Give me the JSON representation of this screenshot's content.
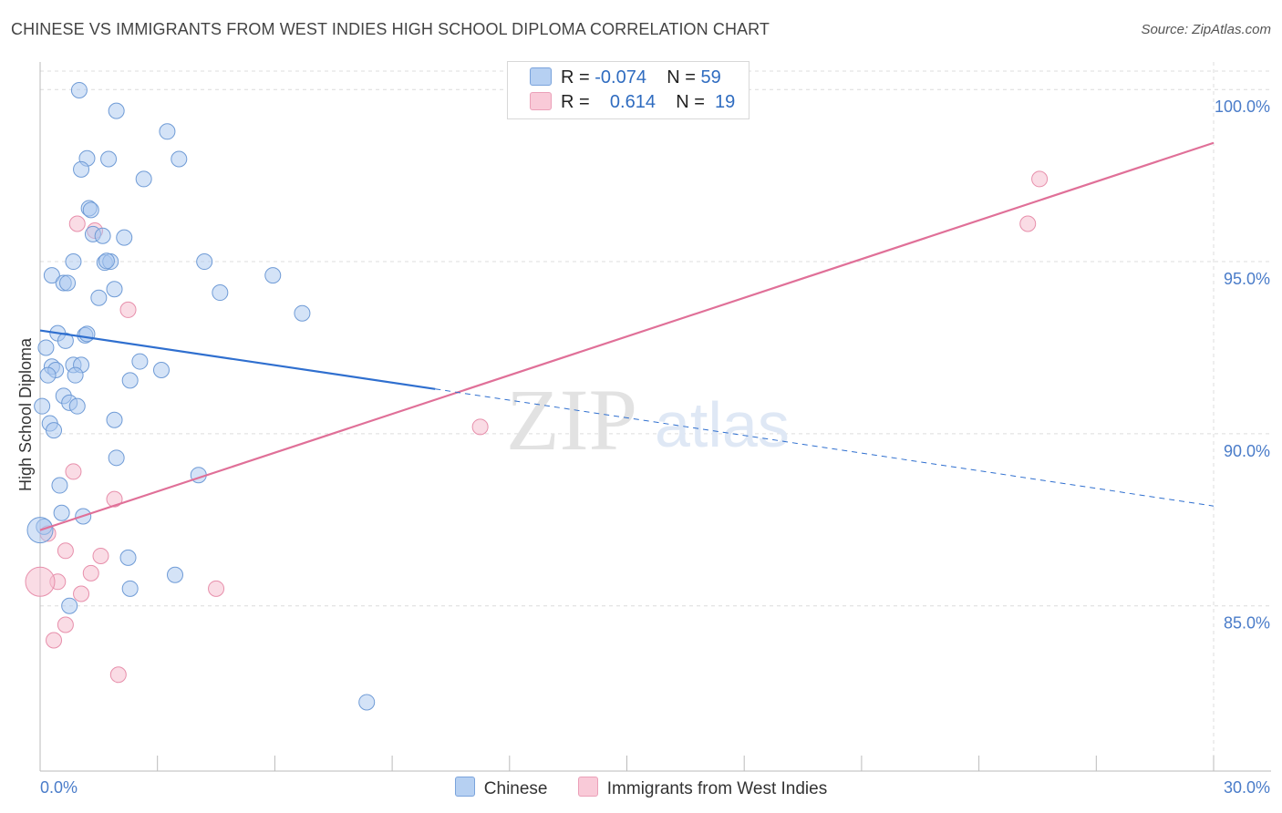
{
  "header": {
    "title": "CHINESE VS IMMIGRANTS FROM WEST INDIES HIGH SCHOOL DIPLOMA CORRELATION CHART",
    "source": "Source: ZipAtlas.com"
  },
  "watermark": {
    "zip": "ZIP",
    "atlas": "atlas"
  },
  "legend": {
    "rows": [
      {
        "r_label": "R =",
        "r_value": "-0.074",
        "n_label": "N =",
        "n_value": "59"
      },
      {
        "r_label": "R =",
        "r_value": "0.614",
        "n_label": "N =",
        "n_value": "19"
      }
    ],
    "series": [
      "Chinese",
      "Immigrants from West Indies"
    ]
  },
  "colors": {
    "blue_fill": "#a9c8ef",
    "blue_stroke": "#6f9bd6",
    "blue_line": "#2f6fcf",
    "pink_fill": "#f6bfd0",
    "pink_stroke": "#e78fab",
    "pink_line": "#e07098",
    "grid": "#dcdcdc",
    "tick_text": "#4a7cc9"
  },
  "chart_data": {
    "type": "scatter",
    "ylabel": "High School Diploma",
    "xlim": [
      0,
      30
    ],
    "ylim": [
      80.2,
      100.8
    ],
    "x_tick_labels": [
      "0.0%",
      "30.0%"
    ],
    "y_ticks": [
      85,
      90,
      95,
      100
    ],
    "y_tick_labels": [
      "85.0%",
      "90.0%",
      "95.0%",
      "100.0%"
    ],
    "series": [
      {
        "name": "Chinese",
        "points": [
          [
            1.0,
            99.98
          ],
          [
            1.95,
            99.38
          ],
          [
            3.25,
            98.78
          ],
          [
            1.2,
            98.0
          ],
          [
            1.75,
            97.98
          ],
          [
            3.55,
            97.98
          ],
          [
            1.05,
            97.68
          ],
          [
            2.65,
            97.4
          ],
          [
            1.25,
            96.55
          ],
          [
            1.3,
            96.5
          ],
          [
            1.35,
            95.8
          ],
          [
            1.6,
            95.75
          ],
          [
            2.15,
            95.7
          ],
          [
            0.85,
            95.0
          ],
          [
            1.65,
            94.97
          ],
          [
            1.8,
            95.0
          ],
          [
            1.7,
            95.02
          ],
          [
            4.2,
            95.0
          ],
          [
            0.3,
            94.6
          ],
          [
            0.6,
            94.38
          ],
          [
            0.7,
            94.38
          ],
          [
            5.95,
            94.6
          ],
          [
            1.9,
            94.2
          ],
          [
            4.6,
            94.1
          ],
          [
            1.5,
            93.95
          ],
          [
            6.7,
            93.5
          ],
          [
            0.45,
            92.92
          ],
          [
            1.15,
            92.86
          ],
          [
            1.2,
            92.9
          ],
          [
            0.65,
            92.7
          ],
          [
            0.15,
            92.5
          ],
          [
            0.85,
            92.0
          ],
          [
            1.05,
            92.0
          ],
          [
            0.3,
            91.95
          ],
          [
            0.4,
            91.85
          ],
          [
            2.55,
            92.1
          ],
          [
            3.1,
            91.85
          ],
          [
            0.2,
            91.7
          ],
          [
            0.9,
            91.7
          ],
          [
            2.3,
            91.55
          ],
          [
            0.6,
            91.1
          ],
          [
            0.75,
            90.9
          ],
          [
            0.95,
            90.8
          ],
          [
            0.05,
            90.8
          ],
          [
            0.25,
            90.3
          ],
          [
            0.35,
            90.1
          ],
          [
            1.9,
            90.4
          ],
          [
            1.95,
            89.3
          ],
          [
            4.05,
            88.8
          ],
          [
            0.5,
            88.5
          ],
          [
            0.55,
            87.7
          ],
          [
            1.1,
            87.6
          ],
          [
            0.1,
            87.3
          ],
          [
            2.25,
            86.4
          ],
          [
            3.45,
            85.9
          ],
          [
            2.3,
            85.5
          ],
          [
            0.75,
            85.0
          ],
          [
            8.35,
            82.2
          ],
          [
            0.0,
            87.2
          ]
        ]
      },
      {
        "name": "Immigrants from West Indies",
        "points": [
          [
            25.55,
            97.4
          ],
          [
            25.25,
            96.1
          ],
          [
            0.95,
            96.1
          ],
          [
            1.4,
            95.9
          ],
          [
            2.25,
            93.6
          ],
          [
            11.25,
            90.2
          ],
          [
            0.85,
            88.9
          ],
          [
            1.9,
            88.1
          ],
          [
            0.2,
            87.1
          ],
          [
            0.65,
            86.6
          ],
          [
            1.55,
            86.45
          ],
          [
            1.3,
            85.95
          ],
          [
            0.45,
            85.7
          ],
          [
            4.5,
            85.5
          ],
          [
            1.05,
            85.35
          ],
          [
            0.65,
            84.45
          ],
          [
            0.35,
            84.0
          ],
          [
            2.0,
            83.0
          ],
          [
            0.0,
            85.7
          ]
        ]
      }
    ],
    "trend_lines": [
      {
        "series": "Chinese",
        "solid": [
          [
            0,
            93.0
          ],
          [
            10.1,
            91.3
          ]
        ],
        "dashed": [
          [
            10.1,
            91.3
          ],
          [
            30,
            87.9
          ]
        ]
      },
      {
        "series": "Immigrants from West Indies",
        "solid": [
          [
            0,
            87.2
          ],
          [
            30,
            98.45
          ]
        ]
      }
    ]
  }
}
